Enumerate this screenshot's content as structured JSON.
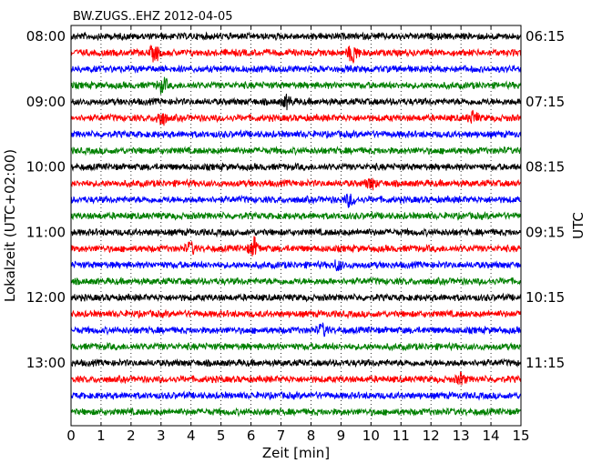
{
  "chart_data": {
    "type": "line",
    "title": "BW.ZUGS..EHZ 2012-04-05",
    "xlabel": "Zeit  [min]",
    "ylabel_left": "Lokalzeit (UTC+02:00)",
    "ylabel_right": "UTC",
    "xlim": [
      0,
      15
    ],
    "x_ticks": [
      0,
      1,
      2,
      3,
      4,
      5,
      6,
      7,
      8,
      9,
      10,
      11,
      12,
      13,
      14,
      15
    ],
    "left_tick_labels": [
      "08:00",
      "09:00",
      "10:00",
      "11:00",
      "12:00",
      "13:00"
    ],
    "right_tick_labels": [
      "06:15",
      "07:15",
      "08:15",
      "09:15",
      "10:15",
      "11:15"
    ],
    "grid": "vertical dotted",
    "trace_colors": [
      "#000000",
      "#ff0000",
      "#0000ff",
      "#008000"
    ],
    "trace_count": 24,
    "trace_start_local": "08:00",
    "trace_interval_minutes": 15,
    "events": [
      {
        "trace": 1,
        "minute": 2.8,
        "amp": 2.2
      },
      {
        "trace": 1,
        "minute": 9.4,
        "amp": 3.0
      },
      {
        "trace": 3,
        "minute": 3.05,
        "amp": 2.0
      },
      {
        "trace": 4,
        "minute": 7.2,
        "amp": 1.6
      },
      {
        "trace": 5,
        "minute": 3.0,
        "amp": 2.2
      },
      {
        "trace": 5,
        "minute": 13.4,
        "amp": 1.8
      },
      {
        "trace": 9,
        "minute": 10.0,
        "amp": 1.5
      },
      {
        "trace": 10,
        "minute": 9.3,
        "amp": 1.8
      },
      {
        "trace": 13,
        "minute": 4.0,
        "amp": 1.6
      },
      {
        "trace": 13,
        "minute": 6.1,
        "amp": 2.6
      },
      {
        "trace": 14,
        "minute": 8.9,
        "amp": 1.4
      },
      {
        "trace": 18,
        "minute": 8.4,
        "amp": 1.6
      },
      {
        "trace": 21,
        "minute": 13.0,
        "amp": 1.5
      }
    ]
  }
}
